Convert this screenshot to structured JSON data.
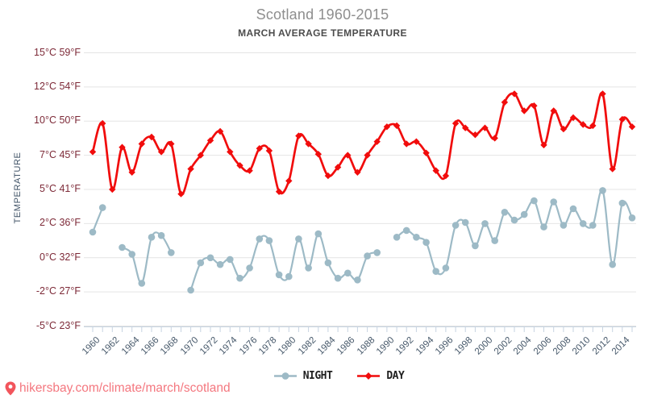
{
  "header": {
    "title": "Scotland 1960-2015",
    "subtitle": "MARCH AVERAGE TEMPERATURE"
  },
  "y_axis": {
    "label": "TEMPERATURE"
  },
  "x_axis": {
    "labeled_years": [
      1960,
      1962,
      1964,
      1966,
      1968,
      1970,
      1972,
      1974,
      1976,
      1978,
      1980,
      1982,
      1984,
      1986,
      1988,
      1990,
      1992,
      1994,
      1996,
      1998,
      2000,
      2002,
      2004,
      2006,
      2008,
      2010,
      2012,
      2014
    ]
  },
  "legend": {
    "night_label": "NIGHT",
    "day_label": "DAY"
  },
  "footer": {
    "url": "hikersbay.com/climate/march/scotland"
  },
  "palette": {
    "day_red": "#f10c0c",
    "night_blue": "#9dbac6",
    "axis_label_maroon": "#7d2a38",
    "tick_label_slate": "#46586a",
    "grid_gray": "#e4e4e4",
    "axis_line_blue": "#c6d3e1",
    "url_pink": "#f4777f"
  },
  "chart_data": {
    "type": "line",
    "title": "Scotland 1960-2015",
    "subtitle": "MARCH AVERAGE TEMPERATURE",
    "ylim": [
      -5,
      15
    ],
    "grid": true,
    "legend_position": "bottom",
    "y_axis_ticks": [
      {
        "value": 15,
        "celsius": "15°C",
        "fahrenheit": "59°F"
      },
      {
        "value": 12,
        "celsius": "12°C",
        "fahrenheit": "54°F"
      },
      {
        "value": 10,
        "celsius": "10°C",
        "fahrenheit": "50°F"
      },
      {
        "value": 7,
        "celsius": "7°C",
        "fahrenheit": "45°F"
      },
      {
        "value": 5,
        "celsius": "5°C",
        "fahrenheit": "41°F"
      },
      {
        "value": 2,
        "celsius": "2°C",
        "fahrenheit": "36°F"
      },
      {
        "value": 0,
        "celsius": "0°C",
        "fahrenheit": "32°F"
      },
      {
        "value": -2,
        "celsius": "-2°C",
        "fahrenheit": "27°F"
      },
      {
        "value": -5,
        "celsius": "-5°C",
        "fahrenheit": "23°F"
      }
    ],
    "x": [
      1960,
      1961,
      1962,
      1963,
      1964,
      1965,
      1966,
      1967,
      1968,
      1969,
      1970,
      1971,
      1972,
      1973,
      1974,
      1975,
      1976,
      1977,
      1978,
      1979,
      1980,
      1981,
      1982,
      1983,
      1984,
      1985,
      1986,
      1987,
      1988,
      1989,
      1990,
      1991,
      1992,
      1993,
      1994,
      1995,
      1996,
      1997,
      1998,
      1999,
      2000,
      2001,
      2002,
      2003,
      2004,
      2005,
      2006,
      2007,
      2008,
      2009,
      2010,
      2011,
      2012,
      2013,
      2014,
      2015
    ],
    "series": [
      {
        "name": "NIGHT",
        "unit": "°C",
        "color": "#9dbac6",
        "marker": "circle",
        "values": [
          1.5,
          3.4,
          null,
          0.6,
          0.2,
          -1.5,
          1.2,
          1.3,
          0.3,
          null,
          -1.9,
          -0.3,
          0.0,
          -0.4,
          -0.1,
          -1.2,
          -0.6,
          1.1,
          1.0,
          -1.0,
          -1.1,
          1.1,
          -0.6,
          1.4,
          -0.3,
          -1.2,
          -0.9,
          -1.3,
          0.1,
          0.3,
          null,
          1.2,
          1.6,
          1.2,
          0.9,
          -0.8,
          -0.6,
          1.9,
          2.1,
          0.7,
          2.0,
          1.0,
          3.0,
          2.3,
          2.8,
          4.0,
          1.8,
          3.9,
          1.9,
          3.3,
          2.0,
          1.9,
          4.9,
          -0.4,
          3.8,
          2.5
        ]
      },
      {
        "name": "DAY",
        "unit": "°C",
        "color": "#f10c0c",
        "marker": "diamond",
        "values": [
          7.3,
          9.8,
          5.0,
          7.7,
          6.0,
          8.0,
          8.6,
          7.3,
          8.0,
          4.6,
          6.2,
          7.0,
          8.3,
          9.1,
          7.3,
          6.4,
          6.1,
          7.6,
          7.4,
          4.8,
          5.5,
          8.7,
          8.0,
          7.1,
          5.8,
          6.3,
          7.0,
          6.0,
          7.0,
          8.2,
          9.5,
          9.6,
          8.0,
          8.2,
          7.2,
          6.1,
          5.8,
          9.8,
          9.4,
          8.8,
          9.4,
          8.5,
          11.1,
          11.6,
          10.6,
          10.9,
          7.9,
          10.6,
          9.3,
          10.2,
          9.7,
          9.6,
          11.6,
          6.2,
          10.1,
          9.5
        ]
      }
    ]
  }
}
